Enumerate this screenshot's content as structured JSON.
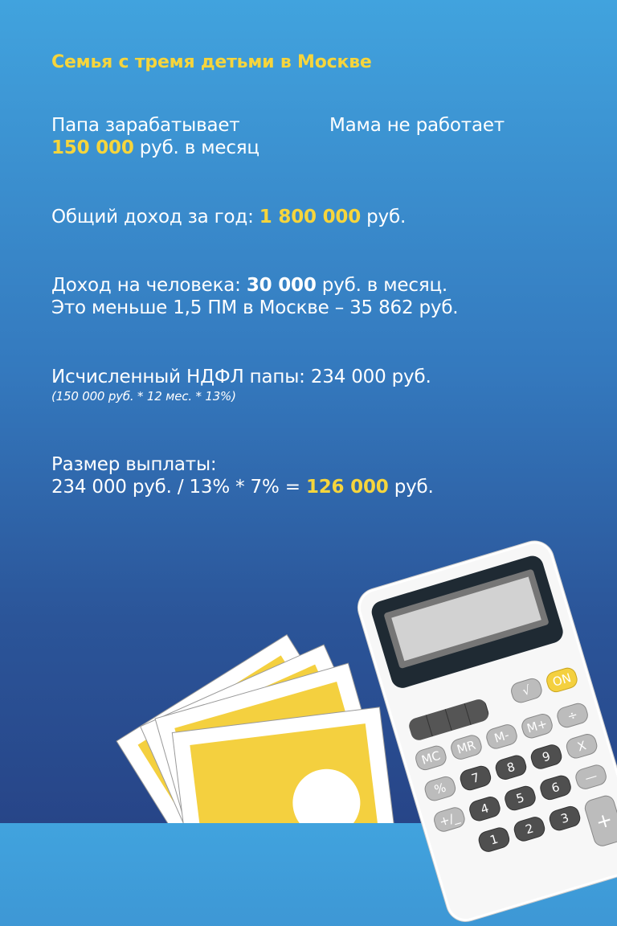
{
  "title": "Семья с тремя детьми в Москве",
  "dad": {
    "line1": "Папа зарабатывает",
    "amount": "150 000",
    "line2": " руб. в месяц"
  },
  "mom": "Мама не работает",
  "yearly": {
    "label": "Общий доход за год: ",
    "amount": "1 800 000",
    "unit": " руб."
  },
  "per_person": {
    "label": "Доход на человека: ",
    "amount": "30 000",
    "unit": " руб. в месяц.",
    "line2": "Это меньше 1,5 ПМ в Москве – 35 862 руб."
  },
  "ndfl": {
    "line": "Исчисленный НДФЛ папы: 234 000 руб.",
    "formula": "(150 000 руб. * 12 мес. * 13%)"
  },
  "payment": {
    "label": "Размер выплаты:",
    "calc": "234 000 руб. / 13% * 7% = ",
    "amount": "126 000",
    "unit": " руб."
  },
  "calculator": {
    "keys": {
      "sqrt": "√",
      "on": "ON",
      "mc": "MC",
      "mr": "MR",
      "mminus": "M-",
      "mplus": "M+",
      "div": "÷",
      "pct": "%",
      "k7": "7",
      "k8": "8",
      "k9": "9",
      "mul": "X",
      "pm": "+/_",
      "k4": "4",
      "k5": "5",
      "k6": "6",
      "minus": "—",
      "k1": "1",
      "k2": "2",
      "k3": "3",
      "plus": "+"
    }
  },
  "colors": {
    "accent": "#f6d53c",
    "bg_top": "#41a3de",
    "bg_bottom": "#274588"
  }
}
